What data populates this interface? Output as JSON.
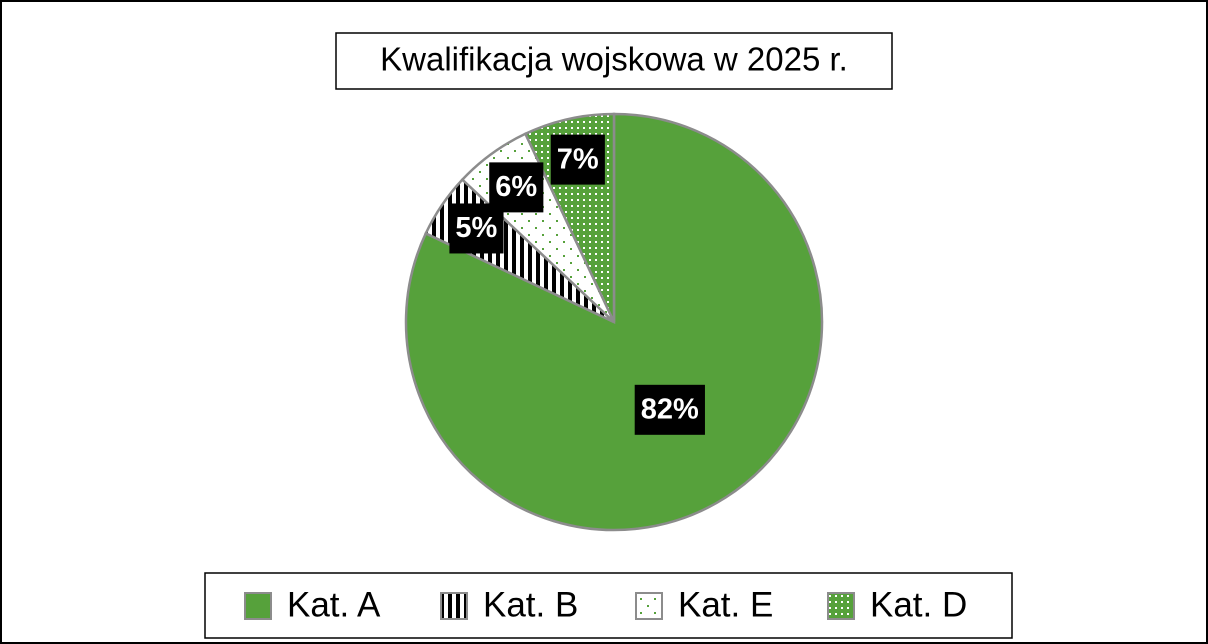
{
  "chart_data": {
    "type": "pie",
    "title": "Kwalifikacja wojskowa w 2025 r.",
    "categories": [
      "Kat. A",
      "Kat. B",
      "Kat. E",
      "Kat. D"
    ],
    "values": [
      82,
      5,
      6,
      7
    ],
    "value_labels": [
      "82%",
      "5%",
      "6%",
      "7%"
    ],
    "colors": [
      "#56a13b",
      "#000000",
      "#56a13b",
      "#56a13b"
    ],
    "patterns": [
      "solid",
      "vertical-stripes",
      "sparse-dots",
      "dense-dots"
    ],
    "legend": "bottom"
  }
}
